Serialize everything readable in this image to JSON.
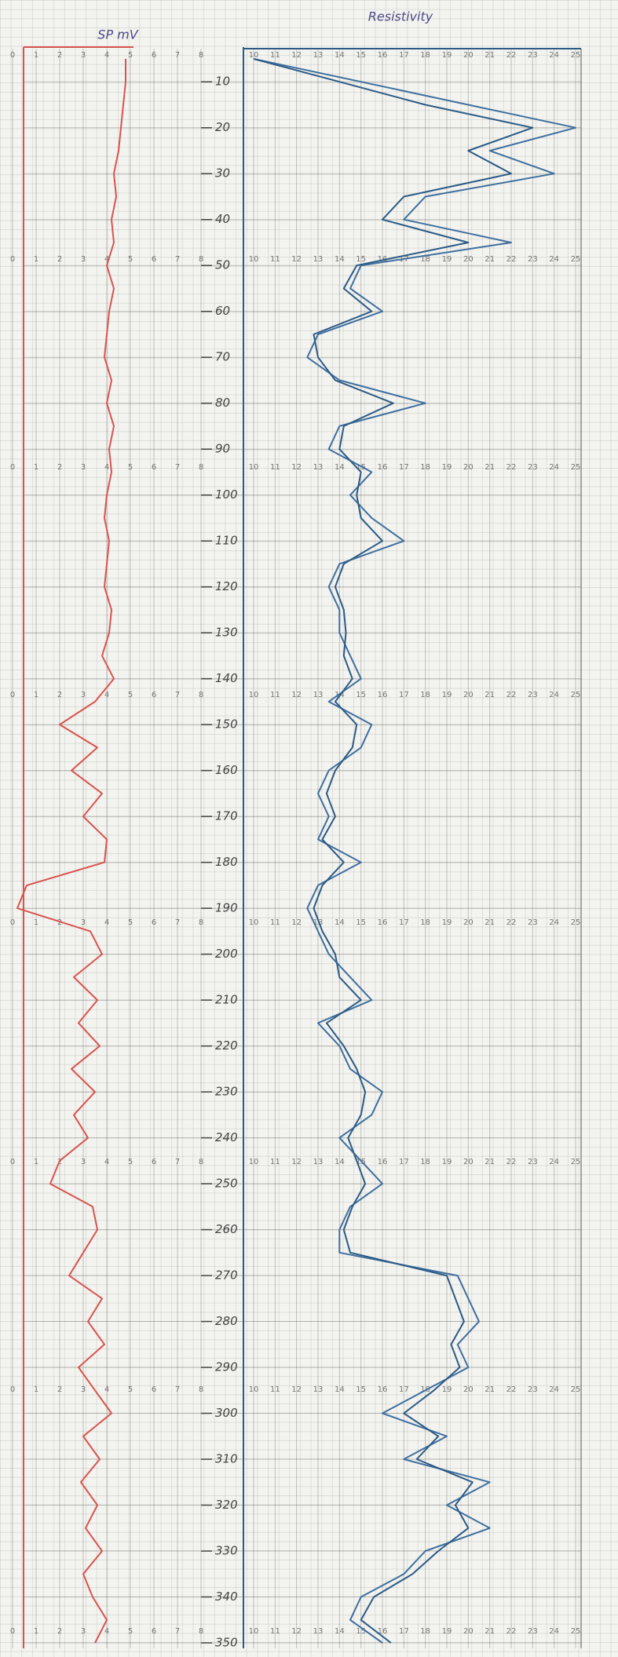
{
  "chart_data": [
    {
      "type": "line",
      "title": "SP mV",
      "y": [
        5,
        10,
        15,
        20,
        25,
        30,
        35,
        40,
        45,
        50,
        55,
        60,
        65,
        70,
        75,
        80,
        85,
        90,
        95,
        100,
        105,
        110,
        115,
        120,
        125,
        130,
        135,
        140,
        145,
        150,
        155,
        160,
        165,
        170,
        175,
        180,
        185,
        190,
        195,
        200,
        205,
        210,
        215,
        220,
        225,
        230,
        235,
        240,
        245,
        250,
        255,
        260,
        265,
        270,
        275,
        280,
        285,
        290,
        295,
        300,
        305,
        310,
        315,
        320,
        325,
        330,
        335,
        340,
        345,
        350
      ],
      "series": [
        {
          "color": "#d9534f",
          "values": [
            4.8,
            4.8,
            4.7,
            4.6,
            4.5,
            4.3,
            4.4,
            4.2,
            4.3,
            4.0,
            4.3,
            4.1,
            4.0,
            3.9,
            4.2,
            4.0,
            4.3,
            4.1,
            4.2,
            4.0,
            3.9,
            4.1,
            4.0,
            3.9,
            4.2,
            4.1,
            3.8,
            4.3,
            3.5,
            2.0,
            3.6,
            2.5,
            3.8,
            3.0,
            4.0,
            3.9,
            0.6,
            0.2,
            3.3,
            3.8,
            2.6,
            3.6,
            2.8,
            3.7,
            2.5,
            3.5,
            2.6,
            3.2,
            2.0,
            1.6,
            3.4,
            3.6,
            3.0,
            2.4,
            3.8,
            3.2,
            3.9,
            2.8,
            3.5,
            4.2,
            3.0,
            3.7,
            2.9,
            3.6,
            3.1,
            3.8,
            3.0,
            3.4,
            4.0,
            3.5
          ]
        }
      ],
      "xlim": [
        0,
        8
      ],
      "xticks": [
        0,
        1,
        2,
        3,
        4,
        5,
        6,
        7,
        8
      ],
      "ylim": [
        5,
        350
      ],
      "yticks": [
        10,
        20,
        30,
        40,
        50,
        60,
        70,
        80,
        90,
        100,
        110,
        120,
        130,
        140,
        150,
        160,
        170,
        180,
        190,
        200,
        210,
        220,
        230,
        240,
        250,
        260,
        270,
        280,
        290,
        300,
        310,
        320,
        330,
        340,
        350
      ]
    },
    {
      "type": "line",
      "title": "Resistivity",
      "y": [
        5,
        10,
        15,
        20,
        25,
        30,
        35,
        40,
        45,
        50,
        55,
        60,
        65,
        70,
        75,
        80,
        85,
        90,
        95,
        100,
        105,
        110,
        115,
        120,
        125,
        130,
        135,
        140,
        145,
        150,
        155,
        160,
        165,
        170,
        175,
        180,
        185,
        190,
        195,
        200,
        205,
        210,
        215,
        220,
        225,
        230,
        235,
        240,
        245,
        250,
        255,
        260,
        265,
        270,
        275,
        280,
        285,
        290,
        295,
        300,
        305,
        310,
        315,
        320,
        325,
        330,
        335,
        340,
        345,
        350
      ],
      "series": [
        {
          "color": "#3f6f9f",
          "values": [
            10,
            15,
            20,
            25,
            21,
            24,
            18,
            17,
            22,
            15,
            14.5,
            16,
            13,
            12.5,
            14,
            18,
            14,
            13.5,
            15.5,
            14.5,
            15.5,
            17,
            14,
            13.5,
            14,
            14,
            14.5,
            15,
            13.5,
            15.5,
            15,
            13.5,
            13,
            13.5,
            13,
            15,
            13,
            12.5,
            13,
            13.5,
            14.5,
            15.5,
            13,
            14,
            14.5,
            16,
            15.5,
            14,
            15,
            16,
            14.5,
            14,
            14,
            19.5,
            20,
            20.5,
            19.5,
            20,
            18,
            16,
            19,
            17,
            21,
            19,
            21,
            18,
            17,
            15,
            14.5,
            16
          ]
        },
        {
          "color": "#2b5a85",
          "values": [
            10,
            14,
            18,
            23,
            20,
            22,
            17,
            16,
            20,
            14.8,
            14.2,
            15.5,
            12.8,
            13,
            13.8,
            16.5,
            14.2,
            14,
            15,
            14.8,
            15,
            16,
            14.2,
            13.8,
            14.2,
            14.3,
            14.2,
            14.6,
            13.8,
            14.8,
            14.6,
            13.8,
            13.4,
            13.8,
            13.2,
            14.2,
            13.2,
            12.8,
            13.2,
            13.8,
            14,
            15,
            13.4,
            14.2,
            14.8,
            15.2,
            15,
            14.4,
            14.8,
            15.2,
            14.6,
            14.2,
            14.5,
            19,
            19.4,
            19.8,
            19.2,
            19.6,
            18.4,
            17,
            18.6,
            17.6,
            20.2,
            19.4,
            20,
            18.6,
            17.4,
            15.6,
            15,
            16.4
          ]
        }
      ],
      "xlim": [
        10,
        25
      ],
      "xticks": [
        10,
        11,
        12,
        13,
        14,
        15,
        16,
        17,
        18,
        19,
        20,
        21,
        22,
        23,
        24,
        25
      ]
    }
  ]
}
